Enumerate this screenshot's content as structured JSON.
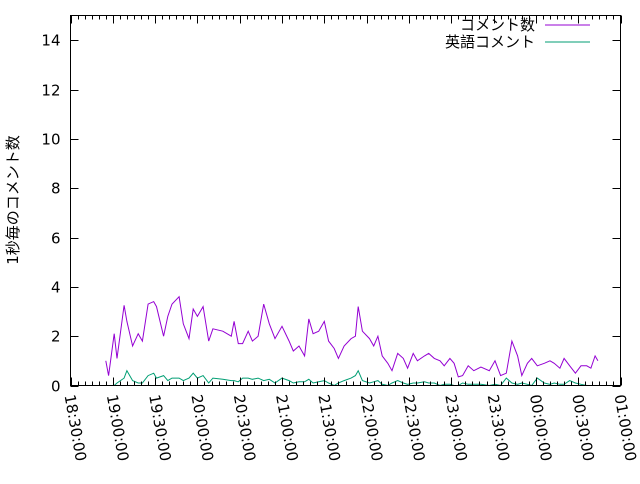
{
  "chart_data": {
    "type": "line",
    "title": "",
    "xlabel": "",
    "ylabel": "1秒毎のコメント数",
    "ylim": [
      0,
      15
    ],
    "yticks": [
      0,
      2,
      4,
      6,
      8,
      10,
      12,
      14
    ],
    "xlim": [
      "18:30:00",
      "01:00:00"
    ],
    "xticks": [
      "18:30:00",
      "19:00:00",
      "19:30:00",
      "20:00:00",
      "20:30:00",
      "21:00:00",
      "21:30:00",
      "22:00:00",
      "22:30:00",
      "23:00:00",
      "23:30:00",
      "00:00:00",
      "00:30:00",
      "01:00:00"
    ],
    "grid": false,
    "legend_position": "top-right",
    "x": [
      "18:55",
      "18:57",
      "19:01",
      "19:03",
      "19:08",
      "19:10",
      "19:14",
      "19:18",
      "19:21",
      "19:25",
      "19:29",
      "19:31",
      "19:36",
      "19:39",
      "19:42",
      "19:47",
      "19:50",
      "19:54",
      "19:57",
      "20:00",
      "20:04",
      "20:08",
      "20:11",
      "20:18",
      "20:24",
      "20:26",
      "20:29",
      "20:32",
      "20:36",
      "20:39",
      "20:43",
      "20:47",
      "20:51",
      "20:55",
      "21:00",
      "21:05",
      "21:08",
      "21:12",
      "21:16",
      "21:19",
      "21:22",
      "21:26",
      "21:30",
      "21:33",
      "21:37",
      "21:40",
      "21:44",
      "21:49",
      "21:52",
      "21:54",
      "21:57",
      "22:02",
      "22:05",
      "22:08",
      "22:11",
      "22:15",
      "22:18",
      "22:22",
      "22:26",
      "22:29",
      "22:33",
      "22:36",
      "22:41",
      "22:44",
      "22:48",
      "22:52",
      "22:55",
      "22:59",
      "23:02",
      "23:05",
      "23:08",
      "23:12",
      "23:16",
      "23:21",
      "23:27",
      "23:31",
      "23:35",
      "23:39",
      "23:43",
      "23:47",
      "23:50",
      "23:54",
      "23:57",
      "00:01",
      "00:06",
      "00:10",
      "00:13",
      "00:17",
      "00:20",
      "00:24",
      "00:28",
      "00:32",
      "00:36",
      "00:39",
      "00:42",
      "00:44"
    ],
    "series": [
      {
        "name": "コメント数",
        "color": "#9400d3",
        "values": [
          1.0,
          0.4,
          2.1,
          1.1,
          3.25,
          2.6,
          1.6,
          2.1,
          1.8,
          3.3,
          3.4,
          3.2,
          2.0,
          2.8,
          3.3,
          3.6,
          2.5,
          1.9,
          3.1,
          2.8,
          3.2,
          1.8,
          2.3,
          2.2,
          2.0,
          2.6,
          1.7,
          1.7,
          2.2,
          1.8,
          2.0,
          3.3,
          2.5,
          1.9,
          2.4,
          1.8,
          1.4,
          1.6,
          1.2,
          2.7,
          2.1,
          2.2,
          2.6,
          1.8,
          1.5,
          1.1,
          1.6,
          1.9,
          2.0,
          3.2,
          2.2,
          1.9,
          1.6,
          2.0,
          1.2,
          0.9,
          0.6,
          1.3,
          1.1,
          0.7,
          1.3,
          1.0,
          1.2,
          1.3,
          1.1,
          1.0,
          0.8,
          1.1,
          0.9,
          0.35,
          0.4,
          0.8,
          0.6,
          0.75,
          0.6,
          1.0,
          0.4,
          0.5,
          1.8,
          1.2,
          0.4,
          0.9,
          1.1,
          0.8,
          0.9,
          1.0,
          0.9,
          0.7,
          1.1,
          0.8,
          0.5,
          0.8,
          0.8,
          0.7,
          1.2,
          1.0
        ]
      },
      {
        "name": "英語コメント",
        "color": "#009e73",
        "values": [
          null,
          null,
          0.0,
          0.1,
          0.3,
          0.6,
          0.2,
          0.1,
          0.1,
          0.4,
          0.5,
          0.3,
          0.4,
          0.2,
          0.3,
          0.3,
          0.2,
          0.3,
          0.5,
          0.3,
          0.4,
          0.1,
          0.3,
          0.25,
          0.2,
          0.2,
          0.15,
          0.3,
          0.3,
          0.25,
          0.3,
          0.2,
          0.25,
          0.1,
          0.3,
          0.2,
          0.1,
          0.15,
          0.15,
          0.25,
          0.1,
          0.15,
          0.2,
          0.1,
          0.0,
          0.1,
          0.2,
          0.3,
          0.4,
          0.6,
          0.2,
          0.1,
          0.15,
          0.2,
          0.05,
          0.0,
          0.1,
          0.2,
          0.1,
          0.05,
          0.1,
          0.1,
          0.15,
          0.1,
          0.1,
          0.0,
          0.05,
          0.05,
          0.0,
          0.0,
          0.1,
          0.05,
          0.05,
          0.05,
          0.0,
          0.05,
          0.0,
          0.3,
          0.1,
          0.05,
          0.1,
          0.05,
          0.0,
          0.3,
          0.1,
          0.05,
          0.1,
          0.05,
          0.05,
          0.2,
          0.1,
          0.05,
          0.0,
          0.0,
          null,
          null
        ]
      }
    ]
  }
}
